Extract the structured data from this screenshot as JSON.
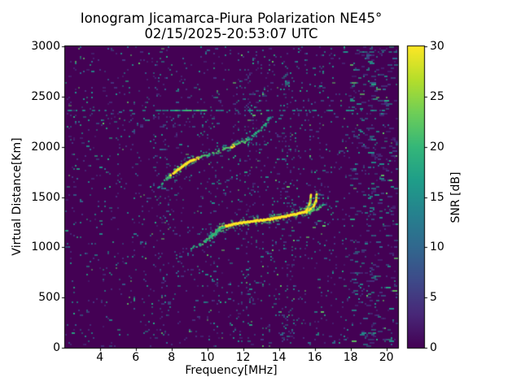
{
  "chart_data": {
    "type": "heatmap",
    "title": "Ionogram Jicamarca-Piura Polarization NE45°",
    "subtitle": "02/15/2025-20:53:07 UTC",
    "xlabel": "Frequency[MHz]",
    "ylabel": "Virtual Distance[Km]",
    "colorbar_label": "SNR [dB]",
    "x_range_mhz": [
      2.06,
      20.65
    ],
    "y_range_km": [
      0,
      3000
    ],
    "snr_range_db": [
      0,
      30
    ],
    "x_ticks_mhz": [
      4,
      6,
      8,
      10,
      12,
      14,
      16,
      18,
      20
    ],
    "y_ticks_km": [
      0,
      500,
      1000,
      1500,
      2000,
      2500,
      3000
    ],
    "colorbar_ticks_db": [
      0,
      5,
      10,
      15,
      20,
      25,
      30
    ],
    "background_color": "#440154",
    "viridis_stops": [
      "#440154",
      "#482878",
      "#3e4a89",
      "#31688e",
      "#26828e",
      "#1f9e89",
      "#35b779",
      "#6ece58",
      "#b5de2b",
      "#fde725"
    ],
    "trace_palette": {
      "core": "#fde725",
      "mid": "#4ec36b",
      "low": "#2ab07f",
      "dim": "#21918c",
      "fringe": "#49c16d"
    },
    "noise": {
      "base_density": 0.042,
      "colors": [
        [
          "#453781",
          0.42
        ],
        [
          "#31688e",
          0.2
        ],
        [
          "#21918c",
          0.25
        ],
        [
          "#25ab82",
          0.08
        ],
        [
          "#5ec962",
          0.05
        ]
      ],
      "v_bands": [
        {
          "f": 7.35,
          "sigma": 0.25,
          "amp": 1.3
        },
        {
          "f": 10.35,
          "sigma": 0.3,
          "amp": 0.9
        },
        {
          "f": 12.3,
          "sigma": 0.5,
          "amp": 1.2
        },
        {
          "f": 14.35,
          "sigma": 0.3,
          "amp": 2.0
        },
        {
          "f": 16.4,
          "sigma": 0.25,
          "amp": 0.8
        },
        {
          "f": 19.2,
          "sigma": 0.8,
          "amp": 1.2
        }
      ],
      "right_zone": {
        "f_start": 17.9,
        "density": 0.085
      }
    },
    "interference_lines": [
      {
        "km": 2365,
        "f_range": [
          2.1,
          20.6
        ],
        "density": 0.32,
        "bright": {
          "f_range": [
            7.9,
            9.9
          ],
          "density": 0.8,
          "colors": [
            "#35b779",
            "#4ac16d",
            "#21918c"
          ]
        }
      },
      {
        "km": 2940,
        "f_range": [
          17.4,
          20.6
        ],
        "density": 0.3
      }
    ],
    "interference_band": {
      "km_center": 2270,
      "half_km": 70,
      "f_range": [
        2.1,
        10.2
      ],
      "extra_density": 0.045
    },
    "traces": [
      {
        "name": "second-hop-arc",
        "points": [
          [
            7.25,
            1595,
            0.3
          ],
          [
            7.6,
            1655,
            0.45
          ],
          [
            7.95,
            1715,
            0.8
          ],
          [
            8.35,
            1770,
            1.0
          ],
          [
            8.8,
            1830,
            1.0
          ],
          [
            9.25,
            1875,
            0.9
          ],
          [
            9.65,
            1900,
            0.75
          ],
          [
            10.1,
            1925,
            0.5
          ],
          [
            10.55,
            1952,
            0.6
          ],
          [
            11.0,
            1980,
            0.75
          ],
          [
            11.45,
            2010,
            0.8
          ],
          [
            11.9,
            2045,
            0.65
          ],
          [
            12.3,
            2080,
            0.5
          ],
          [
            12.65,
            2125,
            0.45
          ],
          [
            13.0,
            2175,
            0.5
          ],
          [
            13.25,
            2225,
            0.5
          ],
          [
            13.4,
            2270,
            0.4
          ],
          [
            13.55,
            2305,
            0.25
          ]
        ]
      },
      {
        "name": "f-layer-main",
        "points": [
          [
            10.25,
            1115,
            0.8
          ],
          [
            10.7,
            1190,
            1.0
          ],
          [
            11.2,
            1220,
            1.0
          ],
          [
            11.9,
            1243,
            1.0
          ],
          [
            12.7,
            1262,
            1.0
          ],
          [
            13.5,
            1278,
            1.0
          ],
          [
            14.3,
            1305,
            1.0
          ],
          [
            15.0,
            1332,
            1.0
          ],
          [
            15.45,
            1350,
            1.0
          ]
        ]
      },
      {
        "name": "f-layer-tail-a",
        "points": [
          [
            8.95,
            995,
            0.4
          ],
          [
            9.3,
            1003,
            0.5
          ],
          [
            9.6,
            1025,
            0.5
          ],
          [
            9.9,
            1060,
            0.55
          ],
          [
            10.2,
            1110,
            0.55
          ],
          [
            10.55,
            1165,
            0.6
          ],
          [
            10.85,
            1198,
            0.55
          ]
        ]
      },
      {
        "name": "f-layer-tail-b",
        "points": [
          [
            9.6,
            1013,
            0.35
          ],
          [
            9.95,
            1062,
            0.4
          ],
          [
            10.25,
            1118,
            0.45
          ],
          [
            10.6,
            1172,
            0.45
          ],
          [
            10.95,
            1208,
            0.45
          ]
        ]
      },
      {
        "name": "f-layer-knee",
        "points": [
          [
            10.1,
            1068,
            0.4
          ],
          [
            10.45,
            1128,
            0.45
          ],
          [
            10.8,
            1188,
            0.5
          ]
        ]
      },
      {
        "name": "cusp-branch-a",
        "points": [
          [
            15.45,
            1350,
            1.0
          ],
          [
            15.62,
            1392,
            1.0
          ],
          [
            15.73,
            1445,
            1.0
          ],
          [
            15.78,
            1515,
            0.9
          ]
        ]
      },
      {
        "name": "cusp-branch-b",
        "points": [
          [
            15.55,
            1345,
            0.95
          ],
          [
            15.9,
            1398,
            0.9
          ],
          [
            16.06,
            1455,
            0.9
          ],
          [
            16.1,
            1532,
            0.85
          ]
        ]
      },
      {
        "name": "cusp-branch-c",
        "points": [
          [
            15.65,
            1338,
            0.7
          ],
          [
            16.15,
            1382,
            0.6
          ],
          [
            16.45,
            1412,
            0.5
          ]
        ]
      },
      {
        "name": "cusp-branch-d",
        "points": [
          [
            16.2,
            1470,
            0.3
          ],
          [
            16.3,
            1555,
            0.25
          ]
        ]
      }
    ]
  }
}
